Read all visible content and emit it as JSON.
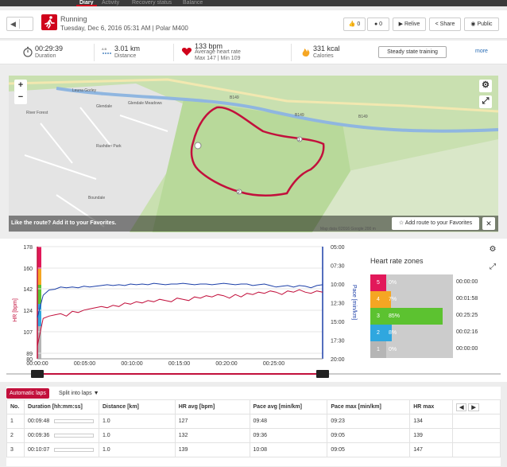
{
  "nav": {
    "tabs": [
      "Diary",
      "Activity",
      "Recovery status",
      "Balance"
    ]
  },
  "header": {
    "sport": "Running",
    "subtitle": "Tuesday, Dec 6, 2016 05:31 AM | Polar M400",
    "like_count": "0",
    "comment_count": "0",
    "relive": "Relive",
    "share": "Share",
    "public": "Public"
  },
  "summary": {
    "duration_value": "00:29:39",
    "duration_label": "Duration",
    "distance_value": "3.01 km",
    "distance_label": "Distance",
    "hr_value": "133 bpm",
    "hr_label": "Average heart rate",
    "hr_range": "Max 147  |  Min 109",
    "calories_value": "331 kcal",
    "calories_label": "Calories",
    "steady_button": "Steady state training",
    "more": "more"
  },
  "map": {
    "labels": [
      "Leuna Gorley",
      "Glendale",
      "Glendale Meadows",
      "River Forest",
      "Rushden Park",
      "Boundale",
      "B149",
      "B149",
      "B149"
    ],
    "route_markers": [
      "1",
      "2"
    ],
    "favorites_prompt": "Like the route?  Add it to your Favorites.",
    "add_favorites": "Add route to your Favorites",
    "attribution": "Map data ©2016 Google   200 m"
  },
  "chart_data": {
    "type": "line",
    "x_ticks": [
      "00:00:00",
      "00:05:00",
      "00:10:00",
      "00:15:00",
      "00:20:00",
      "00:25:00"
    ],
    "y_left_label": "HR [bpm]",
    "y_left_ticks": [
      "178",
      "160",
      "142",
      "124",
      "107",
      "89",
      "80"
    ],
    "y_right_label": "Pace [min/km]",
    "y_right_ticks": [
      "05:00",
      "07:30",
      "10:00",
      "12:30",
      "15:00",
      "17:30",
      "20:00"
    ],
    "series": [
      {
        "color": "#c2103c",
        "axis": "left",
        "values": [
          95,
          118,
          120,
          121,
          122,
          120,
          124,
          123,
          125,
          126,
          127,
          128,
          127,
          129,
          128,
          131,
          130,
          132,
          131,
          133,
          132,
          134,
          133,
          132,
          135,
          134,
          133,
          136,
          135,
          137,
          136,
          138,
          137,
          135,
          138,
          136,
          139,
          138,
          140,
          139,
          141,
          140,
          138,
          141,
          140,
          142,
          140,
          139,
          141,
          140
        ]
      },
      {
        "color": "#1c3fa8",
        "axis": "right",
        "values": [
          14.5,
          11.5,
          10.8,
          10.7,
          10.4,
          10.5,
          10.4,
          10.5,
          10.3,
          10.4,
          10.3,
          10.2,
          10.1,
          10.2,
          10.1,
          10.2,
          10.0,
          10.1,
          10.0,
          10.1,
          9.9,
          10.0,
          10.1,
          10.0,
          10.0,
          9.9,
          10.0,
          10.1,
          10.0,
          10.0,
          10.1,
          10.0,
          9.9,
          10.0,
          10.1,
          10.0,
          10.0,
          10.2,
          10.1,
          10.0,
          10.2,
          10.4,
          10.3,
          10.2,
          10.4,
          10.2,
          10.3,
          10.5,
          10.2,
          10.1
        ]
      }
    ]
  },
  "zones": {
    "title": "Heart rate zones",
    "items": [
      {
        "num": "5",
        "pct": "0%",
        "time": "00:00:00",
        "fraction": 0.0,
        "color": "#e2185a"
      },
      {
        "num": "4",
        "pct": "7%",
        "time": "00:01:58",
        "fraction": 0.07,
        "color": "#f5a623"
      },
      {
        "num": "3",
        "pct": "85%",
        "time": "00:25:25",
        "fraction": 0.85,
        "color": "#5cc230"
      },
      {
        "num": "2",
        "pct": "8%",
        "time": "00:02:16",
        "fraction": 0.08,
        "color": "#2fa7df"
      },
      {
        "num": "1",
        "pct": "0%",
        "time": "00:00:00",
        "fraction": 0.0,
        "color": "#b5b5b5"
      }
    ]
  },
  "laps": {
    "auto_button": "Automatic laps",
    "split_button": "Split into laps",
    "headers": [
      "No.",
      "Duration [hh:mm:ss]",
      "Distance [km]",
      "HR avg [bpm]",
      "Pace avg [min/km]",
      "Pace max [min/km]",
      "HR max"
    ],
    "rows": [
      [
        "1",
        "00:09:48",
        "1.0",
        "127",
        "09:48",
        "09:23",
        "134"
      ],
      [
        "2",
        "00:09:36",
        "1.0",
        "132",
        "09:36",
        "09:05",
        "139"
      ],
      [
        "3",
        "00:10:07",
        "1.0",
        "139",
        "10:08",
        "09:05",
        "147"
      ]
    ]
  }
}
